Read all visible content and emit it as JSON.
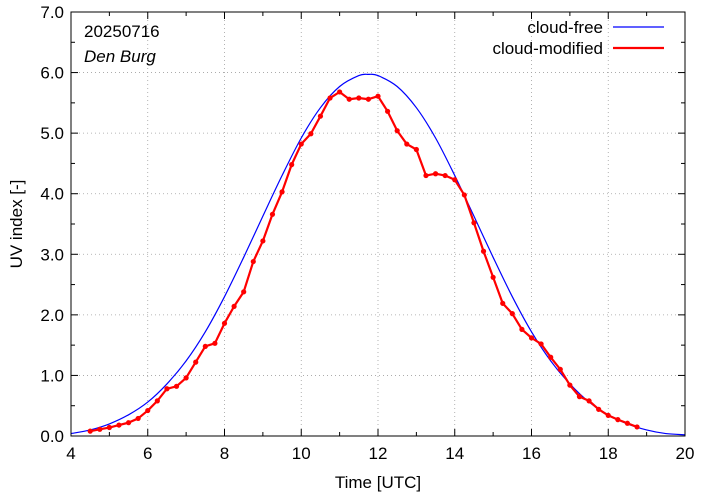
{
  "chart_data": {
    "type": "line",
    "title": "",
    "date_label": "20250716",
    "location_label": "Den Burg",
    "xlabel": "Time  [UTC]",
    "ylabel": "UV index  [-]",
    "xlim": [
      4,
      20
    ],
    "ylim": [
      0,
      7
    ],
    "x_ticks": [
      4,
      6,
      8,
      10,
      12,
      14,
      16,
      18,
      20
    ],
    "x_tick_labels": [
      "4",
      "6",
      "8",
      "10",
      "12",
      "14",
      "16",
      "18",
      "20"
    ],
    "y_ticks": [
      0,
      1,
      2,
      3,
      4,
      5,
      6,
      7
    ],
    "y_tick_labels": [
      "0.0",
      "1.0",
      "2.0",
      "3.0",
      "4.0",
      "5.0",
      "6.0",
      "7.0"
    ],
    "grid": true,
    "legend_position": "top-right",
    "series": [
      {
        "name": "cloud-free",
        "color": "#0000ff",
        "style": "line",
        "x": [
          4.0,
          4.5,
          5.0,
          5.5,
          6.0,
          6.5,
          7.0,
          7.5,
          8.0,
          8.5,
          9.0,
          9.5,
          10.0,
          10.5,
          11.0,
          11.5,
          11.75,
          12.0,
          12.5,
          13.0,
          13.5,
          14.0,
          14.5,
          15.0,
          15.5,
          16.0,
          16.5,
          17.0,
          17.5,
          18.0,
          18.5,
          19.0,
          19.5,
          20.0
        ],
        "y": [
          0.04,
          0.1,
          0.2,
          0.35,
          0.56,
          0.86,
          1.24,
          1.72,
          2.3,
          2.95,
          3.63,
          4.3,
          4.92,
          5.42,
          5.77,
          5.95,
          5.97,
          5.95,
          5.77,
          5.42,
          4.92,
          4.3,
          3.63,
          2.95,
          2.3,
          1.72,
          1.24,
          0.86,
          0.56,
          0.35,
          0.2,
          0.1,
          0.04,
          0.02
        ]
      },
      {
        "name": "cloud-modified",
        "color": "#ff0000",
        "style": "line-points",
        "x": [
          4.5,
          4.75,
          5.0,
          5.25,
          5.5,
          5.75,
          6.0,
          6.25,
          6.5,
          6.75,
          7.0,
          7.25,
          7.5,
          7.75,
          8.0,
          8.25,
          8.5,
          8.75,
          9.0,
          9.25,
          9.5,
          9.75,
          10.0,
          10.25,
          10.5,
          10.75,
          11.0,
          11.25,
          11.5,
          11.75,
          12.0,
          12.25,
          12.5,
          12.75,
          13.0,
          13.25,
          13.5,
          13.75,
          14.0,
          14.25,
          14.5,
          14.75,
          15.0,
          15.25,
          15.5,
          15.75,
          16.0,
          16.25,
          16.5,
          16.75,
          17.0,
          17.25,
          17.5,
          17.75,
          18.0,
          18.25,
          18.5,
          18.75
        ],
        "y": [
          0.08,
          0.11,
          0.14,
          0.18,
          0.22,
          0.29,
          0.42,
          0.58,
          0.78,
          0.82,
          0.96,
          1.22,
          1.48,
          1.53,
          1.86,
          2.14,
          2.38,
          2.88,
          3.22,
          3.66,
          4.03,
          4.48,
          4.82,
          4.99,
          5.28,
          5.58,
          5.68,
          5.56,
          5.58,
          5.56,
          5.61,
          5.36,
          5.04,
          4.82,
          4.73,
          4.3,
          4.33,
          4.3,
          4.23,
          3.98,
          3.52,
          3.05,
          2.62,
          2.19,
          2.02,
          1.76,
          1.62,
          1.52,
          1.3,
          1.1,
          0.84,
          0.65,
          0.58,
          0.44,
          0.34,
          0.27,
          0.21,
          0.15
        ]
      }
    ]
  }
}
